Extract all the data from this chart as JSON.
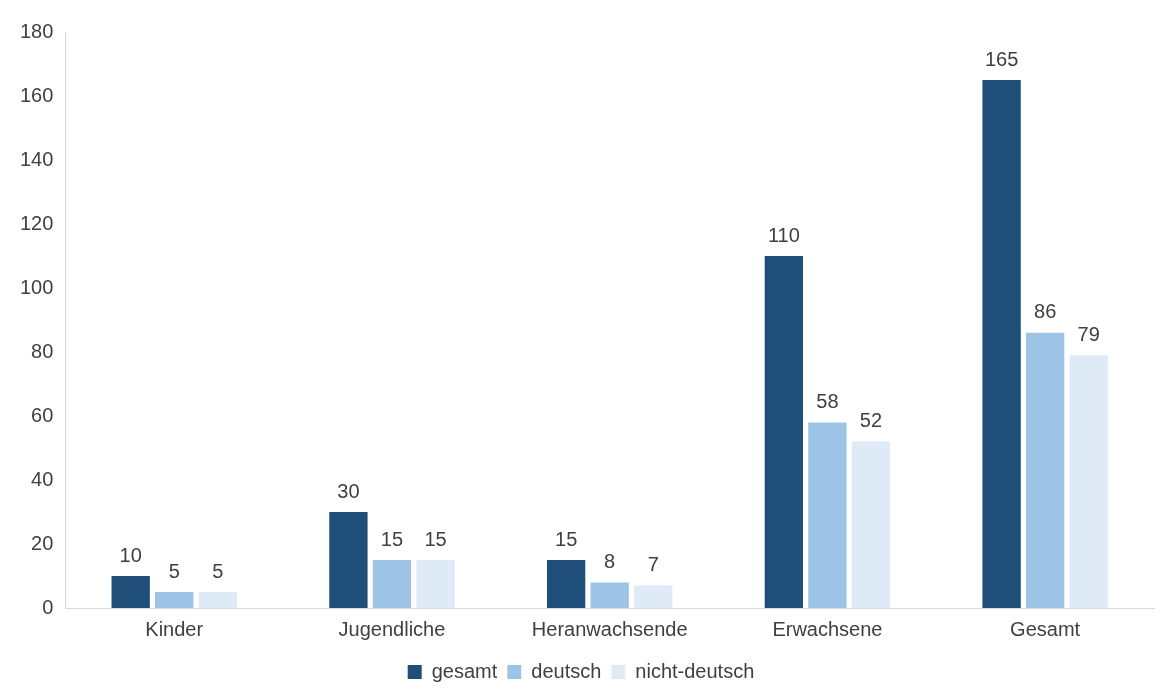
{
  "chart_data": {
    "type": "bar",
    "categories": [
      "Kinder",
      "Jugendliche",
      "Heranwachsende",
      "Erwachsene",
      "Gesamt"
    ],
    "series": [
      {
        "name": "gesamt",
        "color": "#1f4e79",
        "values": [
          10,
          30,
          15,
          110,
          165
        ]
      },
      {
        "name": "deutsch",
        "color": "#9dc3e6",
        "values": [
          5,
          15,
          8,
          58,
          86
        ]
      },
      {
        "name": "nicht-deutsch",
        "color": "#deebf7",
        "values": [
          5,
          15,
          7,
          52,
          79
        ]
      }
    ],
    "ylim": [
      0,
      180
    ],
    "yticks": [
      0,
      20,
      40,
      60,
      80,
      100,
      120,
      140,
      160,
      180
    ],
    "grid": false,
    "legend": "bottom",
    "data_labels": true
  }
}
